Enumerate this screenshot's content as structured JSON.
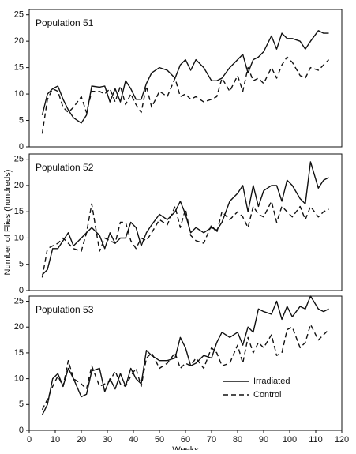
{
  "chart_data": [
    {
      "type": "line",
      "title": "Population 51",
      "xlim": [
        0,
        120
      ],
      "ylim": [
        0,
        26
      ],
      "yticks": [
        0,
        5,
        10,
        15,
        20,
        25
      ],
      "x": [
        5,
        7,
        9,
        11,
        13,
        15,
        17,
        20,
        22,
        24,
        27,
        29,
        31,
        33,
        35,
        37,
        39,
        41,
        43,
        45,
        47,
        50,
        53,
        56,
        58,
        60,
        62,
        64,
        67,
        70,
        72,
        74,
        77,
        80,
        82,
        84,
        86,
        88,
        90,
        93,
        95,
        97,
        99,
        101,
        104,
        106,
        108,
        111,
        113,
        115
      ],
      "series": [
        {
          "color": "#111",
          "style": "solid",
          "values": [
            6,
            10,
            11,
            11.5,
            9,
            7,
            5.5,
            4.5,
            6,
            11.5,
            11.3,
            11.5,
            8.5,
            11,
            8.5,
            12.5,
            11,
            9,
            9,
            12,
            14,
            15,
            14.5,
            13,
            15.5,
            16.5,
            14.5,
            16.5,
            15,
            12.5,
            12.5,
            13,
            15,
            16.5,
            17.5,
            14,
            16.5,
            17,
            18,
            21,
            18.5,
            21.5,
            20.5,
            20.5,
            20,
            18.5,
            20,
            22,
            21.5,
            21.5
          ]
        },
        {
          "color": "#111",
          "style": "dashed",
          "values": [
            2.5,
            9,
            11,
            10.5,
            7.5,
            6.5,
            7.5,
            9.5,
            6.5,
            10.5,
            10.5,
            10,
            11,
            8.5,
            11.5,
            8,
            10,
            8,
            6.5,
            11.5,
            7.5,
            10.5,
            9.5,
            13,
            9.5,
            10,
            9,
            9.5,
            8.5,
            9,
            9.5,
            13,
            10.5,
            13.5,
            10.5,
            15,
            12.5,
            13,
            12,
            15,
            13,
            15.5,
            17,
            16,
            13.5,
            13,
            15,
            14.5,
            15.5,
            16.5
          ]
        }
      ]
    },
    {
      "type": "line",
      "title": "Population 52",
      "ylabel": "Number of Flies (hundreds)",
      "xlim": [
        0,
        120
      ],
      "ylim": [
        0,
        26
      ],
      "yticks": [
        0,
        5,
        10,
        15,
        20,
        25
      ],
      "x": [
        5,
        7,
        9,
        11,
        13,
        15,
        17,
        20,
        22,
        24,
        27,
        29,
        31,
        33,
        35,
        37,
        39,
        41,
        43,
        45,
        47,
        50,
        53,
        56,
        58,
        60,
        62,
        64,
        67,
        70,
        72,
        74,
        77,
        80,
        82,
        84,
        86,
        88,
        90,
        93,
        95,
        97,
        99,
        101,
        104,
        106,
        108,
        111,
        113,
        115
      ],
      "series": [
        {
          "color": "#111",
          "style": "solid",
          "values": [
            3,
            4,
            8,
            8,
            9.5,
            11,
            8.5,
            10,
            11,
            12,
            10.5,
            8,
            11,
            9,
            10,
            10,
            13,
            12,
            8.5,
            11,
            12.5,
            14.5,
            13.5,
            15,
            17,
            14.5,
            11,
            12,
            11,
            12,
            11.5,
            13,
            17,
            18.5,
            20,
            15,
            20,
            16,
            19,
            20,
            20,
            17,
            21,
            20,
            17.5,
            16.5,
            24.5,
            19.5,
            21,
            21.5
          ]
        },
        {
          "color": "#111",
          "style": "dashed",
          "values": [
            2.5,
            8,
            8.5,
            9,
            10,
            9,
            8,
            7.5,
            11,
            16.5,
            7.5,
            10,
            9.5,
            9,
            13,
            13,
            9.5,
            8,
            10,
            9.5,
            11,
            13.5,
            12.5,
            16,
            12,
            15.5,
            10.5,
            9.5,
            9,
            12.5,
            11,
            15,
            13.5,
            15,
            14,
            12,
            16,
            14.5,
            14,
            17,
            13,
            16,
            15,
            14,
            16,
            13.5,
            16,
            14,
            15,
            15.5
          ]
        }
      ]
    },
    {
      "type": "line",
      "title": "Population 53",
      "xlabel": "Weeks",
      "xlim": [
        0,
        120
      ],
      "xticks": [
        0,
        10,
        20,
        30,
        40,
        50,
        60,
        70,
        80,
        90,
        100,
        110,
        120
      ],
      "ylim": [
        0,
        26
      ],
      "yticks": [
        0,
        5,
        10,
        15,
        20,
        25
      ],
      "legend": "lower right",
      "x": [
        5,
        7,
        9,
        11,
        13,
        15,
        17,
        20,
        22,
        24,
        27,
        29,
        31,
        33,
        35,
        37,
        39,
        41,
        43,
        45,
        47,
        50,
        53,
        56,
        58,
        60,
        62,
        64,
        67,
        70,
        72,
        74,
        77,
        80,
        82,
        84,
        86,
        88,
        90,
        93,
        95,
        97,
        99,
        101,
        104,
        106,
        108,
        111,
        113,
        115
      ],
      "series": [
        {
          "name": "Irradiated",
          "color": "#111",
          "style": "solid",
          "values": [
            3,
            5,
            10,
            11,
            8.5,
            12,
            10,
            6.5,
            7,
            11.5,
            12,
            7.5,
            10,
            8,
            11,
            8.5,
            12,
            10,
            9,
            15.5,
            14.5,
            13.5,
            13.5,
            14,
            18,
            16,
            12.5,
            13,
            14.5,
            14,
            17,
            19,
            18,
            19,
            16.5,
            20,
            19,
            23.5,
            23,
            22.5,
            25,
            21.5,
            24,
            22,
            24,
            23.5,
            26,
            23.5,
            23,
            23.5
          ]
        },
        {
          "name": "Control",
          "color": "#111",
          "style": "dashed",
          "values": [
            4,
            6,
            8.5,
            10.5,
            8.5,
            13.5,
            10,
            9,
            8,
            12.5,
            8.5,
            9,
            9.5,
            11.5,
            9,
            8.5,
            10.5,
            12,
            8.5,
            14,
            15,
            12,
            13,
            15,
            12,
            13,
            12.5,
            14,
            12,
            16,
            15,
            12.5,
            13,
            16.5,
            13,
            18,
            15,
            17,
            16,
            18.5,
            14.5,
            15,
            19.5,
            20,
            16,
            17,
            20.5,
            17.5,
            18.5,
            19.5
          ]
        }
      ]
    }
  ]
}
